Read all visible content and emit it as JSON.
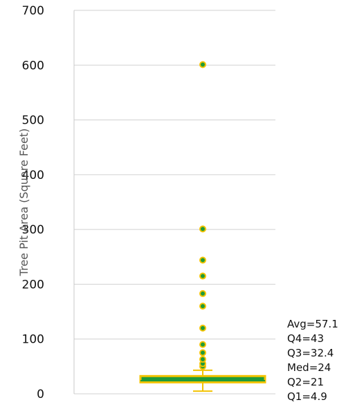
{
  "chart_data": {
    "type": "boxplot",
    "ylabel": "Tree Pit Area (Square Feet)",
    "ylim": [
      0,
      700
    ],
    "yticks": [
      0,
      100,
      200,
      300,
      400,
      500,
      600,
      700
    ],
    "grid": true,
    "box": {
      "whisker_low": 4.9,
      "q1": 21,
      "median": 24,
      "q3": 32.4,
      "whisker_high": 43
    },
    "outliers": [
      50,
      55,
      63,
      75,
      90,
      120,
      160,
      183,
      215,
      244,
      301,
      601
    ],
    "stats_text": [
      "Avg=57.1",
      "Q4=43",
      "Q3=32.4",
      "Med=24",
      "Q2=21",
      "Q1=4.9"
    ],
    "colors": {
      "box_fill": "#1f9b3a",
      "box_edge": "#f3c300",
      "whisker": "#f3c300",
      "point_fill": "#1f9b3a",
      "point_edge": "#f3c300",
      "grid": "#d0d0d0",
      "axis": "#c8c8c8"
    }
  }
}
